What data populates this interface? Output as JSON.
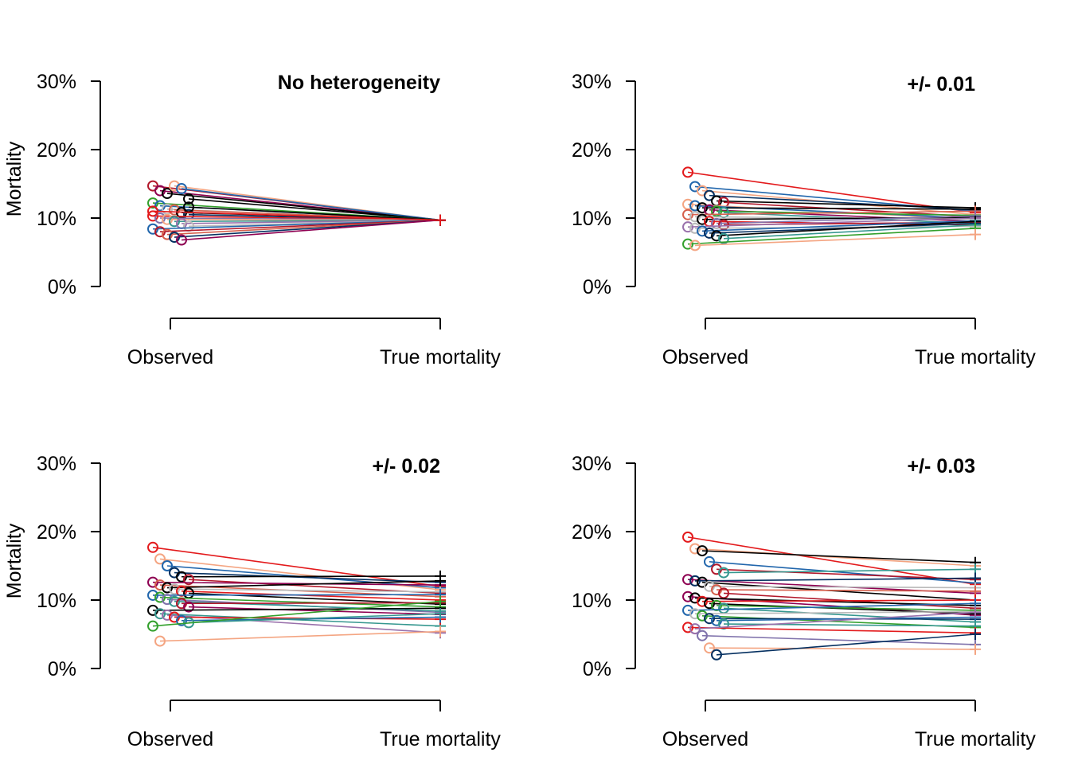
{
  "chart_data": [
    {
      "type": "line",
      "title": "No heterogeneity",
      "ylabel": "Mortality",
      "categories": [
        "Observed",
        "True mortality"
      ],
      "y_ticks": [
        "0%",
        "10%",
        "20%",
        "30%"
      ],
      "ylim": [
        0,
        0.3
      ],
      "series": [
        {
          "values": [
            0.147,
            0.097
          ],
          "color": "#b2182b"
        },
        {
          "values": [
            0.14,
            0.097
          ],
          "color": "#8e0152"
        },
        {
          "values": [
            0.136,
            0.097
          ],
          "color": "#000000"
        },
        {
          "values": [
            0.147,
            0.097
          ],
          "color": "#f4a582"
        },
        {
          "values": [
            0.143,
            0.097
          ],
          "color": "#2166ac"
        },
        {
          "values": [
            0.128,
            0.097
          ],
          "color": "#000000"
        },
        {
          "values": [
            0.122,
            0.097
          ],
          "color": "#33a02c"
        },
        {
          "values": [
            0.118,
            0.097
          ],
          "color": "#2166ac"
        },
        {
          "values": [
            0.113,
            0.097
          ],
          "color": "#bababa"
        },
        {
          "values": [
            0.112,
            0.097
          ],
          "color": "#d6604d"
        },
        {
          "values": [
            0.108,
            0.097
          ],
          "color": "#000000"
        },
        {
          "values": [
            0.105,
            0.097
          ],
          "color": "#053061"
        },
        {
          "values": [
            0.103,
            0.097
          ],
          "color": "#e31a1c"
        },
        {
          "values": [
            0.1,
            0.097
          ],
          "color": "#8073ac"
        },
        {
          "values": [
            0.098,
            0.097
          ],
          "color": "#f4a582"
        },
        {
          "values": [
            0.095,
            0.097
          ],
          "color": "#35978f"
        },
        {
          "values": [
            0.092,
            0.097
          ],
          "color": "#9970ab"
        },
        {
          "values": [
            0.088,
            0.097
          ],
          "color": "#bababa"
        },
        {
          "values": [
            0.084,
            0.097
          ],
          "color": "#2166ac"
        },
        {
          "values": [
            0.08,
            0.097
          ],
          "color": "#b2182b"
        },
        {
          "values": [
            0.076,
            0.097
          ],
          "color": "#d6604d"
        },
        {
          "values": [
            0.072,
            0.097
          ],
          "color": "#053061"
        },
        {
          "values": [
            0.068,
            0.097
          ],
          "color": "#8e0152"
        },
        {
          "values": [
            0.116,
            0.097
          ],
          "color": "#000000"
        },
        {
          "values": [
            0.11,
            0.097
          ],
          "color": "#e31a1c"
        }
      ]
    },
    {
      "type": "line",
      "title": "+/- 0.01",
      "ylabel": "",
      "categories": [
        "Observed",
        "True mortality"
      ],
      "y_ticks": [
        "0%",
        "10%",
        "20%",
        "30%"
      ],
      "ylim": [
        0,
        0.3
      ],
      "series": [
        {
          "values": [
            0.167,
            0.108
          ],
          "color": "#e31a1c"
        },
        {
          "values": [
            0.146,
            0.11
          ],
          "color": "#2166ac"
        },
        {
          "values": [
            0.14,
            0.105
          ],
          "color": "#f4a582"
        },
        {
          "values": [
            0.133,
            0.112
          ],
          "color": "#053061"
        },
        {
          "values": [
            0.125,
            0.115
          ],
          "color": "#000000"
        },
        {
          "values": [
            0.123,
            0.102
          ],
          "color": "#b2182b"
        },
        {
          "values": [
            0.12,
            0.098
          ],
          "color": "#f4a582"
        },
        {
          "values": [
            0.118,
            0.1
          ],
          "color": "#2166ac"
        },
        {
          "values": [
            0.115,
            0.113
          ],
          "color": "#000000"
        },
        {
          "values": [
            0.112,
            0.095
          ],
          "color": "#8e0152"
        },
        {
          "values": [
            0.11,
            0.104
          ],
          "color": "#33a02c"
        },
        {
          "values": [
            0.108,
            0.092
          ],
          "color": "#35978f"
        },
        {
          "values": [
            0.105,
            0.11
          ],
          "color": "#d6604d"
        },
        {
          "values": [
            0.102,
            0.098
          ],
          "color": "#bababa"
        },
        {
          "values": [
            0.098,
            0.101
          ],
          "color": "#000000"
        },
        {
          "values": [
            0.095,
            0.09
          ],
          "color": "#e31a1c"
        },
        {
          "values": [
            0.092,
            0.103
          ],
          "color": "#8073ac"
        },
        {
          "values": [
            0.09,
            0.094
          ],
          "color": "#b2182b"
        },
        {
          "values": [
            0.087,
            0.1
          ],
          "color": "#9970ab"
        },
        {
          "values": [
            0.085,
            0.088
          ],
          "color": "#bababa"
        },
        {
          "values": [
            0.081,
            0.096
          ],
          "color": "#2166ac"
        },
        {
          "values": [
            0.078,
            0.092
          ],
          "color": "#053061"
        },
        {
          "values": [
            0.074,
            0.095
          ],
          "color": "#000000"
        },
        {
          "values": [
            0.07,
            0.09
          ],
          "color": "#35978f"
        },
        {
          "values": [
            0.062,
            0.085
          ],
          "color": "#33a02c"
        },
        {
          "values": [
            0.06,
            0.076
          ],
          "color": "#f4a582"
        }
      ]
    },
    {
      "type": "line",
      "title": "+/- 0.02",
      "ylabel": "Mortality",
      "categories": [
        "Observed",
        "True mortality"
      ],
      "y_ticks": [
        "0%",
        "10%",
        "20%",
        "30%"
      ],
      "ylim": [
        0,
        0.3
      ],
      "series": [
        {
          "values": [
            0.177,
            0.12
          ],
          "color": "#e31a1c"
        },
        {
          "values": [
            0.16,
            0.115
          ],
          "color": "#f4a582"
        },
        {
          "values": [
            0.15,
            0.118
          ],
          "color": "#2166ac"
        },
        {
          "values": [
            0.14,
            0.126
          ],
          "color": "#053061"
        },
        {
          "values": [
            0.134,
            0.135
          ],
          "color": "#000000"
        },
        {
          "values": [
            0.13,
            0.11
          ],
          "color": "#b2182b"
        },
        {
          "values": [
            0.126,
            0.122
          ],
          "color": "#8e0152"
        },
        {
          "values": [
            0.122,
            0.105
          ],
          "color": "#d6604d"
        },
        {
          "values": [
            0.118,
            0.128
          ],
          "color": "#000000"
        },
        {
          "values": [
            0.116,
            0.112
          ],
          "color": "#bababa"
        },
        {
          "values": [
            0.113,
            0.1
          ],
          "color": "#e31a1c"
        },
        {
          "values": [
            0.11,
            0.094
          ],
          "color": "#000000"
        },
        {
          "values": [
            0.107,
            0.108
          ],
          "color": "#2166ac"
        },
        {
          "values": [
            0.104,
            0.09
          ],
          "color": "#33a02c"
        },
        {
          "values": [
            0.101,
            0.082
          ],
          "color": "#8073ac"
        },
        {
          "values": [
            0.098,
            0.084
          ],
          "color": "#35978f"
        },
        {
          "values": [
            0.095,
            0.096
          ],
          "color": "#b2182b"
        },
        {
          "values": [
            0.09,
            0.079
          ],
          "color": "#8e0152"
        },
        {
          "values": [
            0.085,
            0.088
          ],
          "color": "#000000"
        },
        {
          "values": [
            0.08,
            0.062
          ],
          "color": "#35978f"
        },
        {
          "values": [
            0.078,
            0.052
          ],
          "color": "#9970ab"
        },
        {
          "values": [
            0.075,
            0.072
          ],
          "color": "#e31a1c"
        },
        {
          "values": [
            0.07,
            0.075
          ],
          "color": "#2166ac"
        },
        {
          "values": [
            0.067,
            0.08
          ],
          "color": "#35978f"
        },
        {
          "values": [
            0.062,
            0.098
          ],
          "color": "#33a02c"
        },
        {
          "values": [
            0.04,
            0.054
          ],
          "color": "#f4a582"
        }
      ]
    },
    {
      "type": "line",
      "title": "+/- 0.03",
      "ylabel": "",
      "categories": [
        "Observed",
        "True mortality"
      ],
      "y_ticks": [
        "0%",
        "10%",
        "20%",
        "30%"
      ],
      "ylim": [
        0,
        0.3
      ],
      "series": [
        {
          "values": [
            0.192,
            0.123
          ],
          "color": "#e31a1c"
        },
        {
          "values": [
            0.175,
            0.15
          ],
          "color": "#f4a582"
        },
        {
          "values": [
            0.172,
            0.155
          ],
          "color": "#000000"
        },
        {
          "values": [
            0.156,
            0.125
          ],
          "color": "#2166ac"
        },
        {
          "values": [
            0.145,
            0.13
          ],
          "color": "#b2182b"
        },
        {
          "values": [
            0.14,
            0.145
          ],
          "color": "#35978f"
        },
        {
          "values": [
            0.13,
            0.11
          ],
          "color": "#8e0152"
        },
        {
          "values": [
            0.128,
            0.132
          ],
          "color": "#053061"
        },
        {
          "values": [
            0.126,
            0.1
          ],
          "color": "#000000"
        },
        {
          "values": [
            0.12,
            0.118
          ],
          "color": "#bababa"
        },
        {
          "values": [
            0.115,
            0.113
          ],
          "color": "#d6604d"
        },
        {
          "values": [
            0.11,
            0.088
          ],
          "color": "#b2182b"
        },
        {
          "values": [
            0.105,
            0.078
          ],
          "color": "#8e0152"
        },
        {
          "values": [
            0.103,
            0.092
          ],
          "color": "#000000"
        },
        {
          "values": [
            0.098,
            0.1
          ],
          "color": "#e31a1c"
        },
        {
          "values": [
            0.095,
            0.08
          ],
          "color": "#000000"
        },
        {
          "values": [
            0.092,
            0.085
          ],
          "color": "#33a02c"
        },
        {
          "values": [
            0.088,
            0.068
          ],
          "color": "#35978f"
        },
        {
          "values": [
            0.085,
            0.095
          ],
          "color": "#2166ac"
        },
        {
          "values": [
            0.08,
            0.083
          ],
          "color": "#bababa"
        },
        {
          "values": [
            0.077,
            0.06
          ],
          "color": "#33a02c"
        },
        {
          "values": [
            0.073,
            0.072
          ],
          "color": "#053061"
        },
        {
          "values": [
            0.07,
            0.075
          ],
          "color": "#2166ac"
        },
        {
          "values": [
            0.065,
            0.062
          ],
          "color": "#35978f"
        },
        {
          "values": [
            0.06,
            0.052
          ],
          "color": "#e31a1c"
        },
        {
          "values": [
            0.058,
            0.082
          ],
          "color": "#9970ab"
        },
        {
          "values": [
            0.048,
            0.035
          ],
          "color": "#8073ac"
        },
        {
          "values": [
            0.03,
            0.028
          ],
          "color": "#f4a582"
        },
        {
          "values": [
            0.02,
            0.05
          ],
          "color": "#053061"
        }
      ]
    }
  ]
}
